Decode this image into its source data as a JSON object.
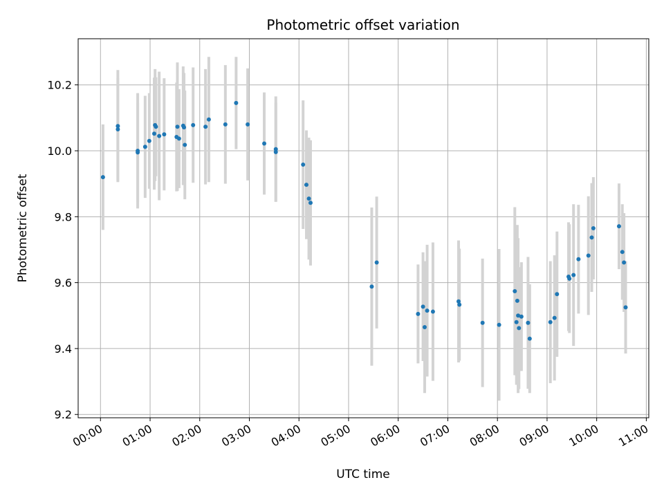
{
  "chart_data": {
    "type": "scatter",
    "title": "Photometric offset variation",
    "xlabel": "UTC time",
    "ylabel": "Photometric offset",
    "x_unit": "UTC time (HH:MM)",
    "xlim": [
      "23:33",
      "11:03"
    ],
    "ylim": [
      9.19,
      10.34
    ],
    "x_ticks": [
      "00:00",
      "01:00",
      "02:00",
      "03:00",
      "04:00",
      "05:00",
      "06:00",
      "07:00",
      "08:00",
      "09:00",
      "10:00",
      "11:00"
    ],
    "y_ticks": [
      9.2,
      9.4,
      9.6,
      9.8,
      10.0,
      10.2
    ],
    "grid": true,
    "colors": {
      "point": "#1f77b4",
      "errorbar": "#d3d3d3",
      "grid": "#b0b0b0"
    },
    "series": [
      {
        "x": [
          "00:03",
          "00:21",
          "00:21",
          "00:45",
          "00:45",
          "00:54",
          "00:59",
          "01:05",
          "01:06",
          "01:07",
          "01:11",
          "01:17",
          "01:32",
          "01:33",
          "01:35",
          "01:40",
          "01:41",
          "01:42",
          "01:52",
          "02:07",
          "02:11",
          "02:31",
          "02:44",
          "02:58",
          "03:18",
          "03:32",
          "03:32",
          "04:05",
          "04:09",
          "04:12",
          "04:14",
          "05:28",
          "05:34",
          "06:24",
          "06:30",
          "06:32",
          "06:35",
          "06:42",
          "07:13",
          "07:14",
          "07:42",
          "08:02",
          "08:21",
          "08:23",
          "08:24",
          "08:25",
          "08:26",
          "08:29",
          "08:37",
          "08:39",
          "09:04",
          "09:09",
          "09:12",
          "09:26",
          "09:27",
          "09:32",
          "09:38",
          "09:50",
          "09:54",
          "09:56",
          "10:27",
          "10:31",
          "10:33",
          "10:35"
        ],
        "y": [
          9.92,
          10.075,
          10.065,
          10.0,
          9.995,
          10.012,
          10.03,
          10.052,
          10.078,
          10.073,
          10.045,
          10.05,
          10.042,
          10.073,
          10.037,
          10.076,
          10.071,
          10.018,
          10.078,
          10.073,
          10.095,
          10.08,
          10.145,
          10.08,
          10.022,
          10.005,
          9.996,
          9.958,
          9.897,
          9.855,
          9.842,
          9.588,
          9.661,
          9.505,
          9.527,
          9.465,
          9.515,
          9.512,
          9.543,
          9.533,
          9.478,
          9.472,
          9.574,
          9.48,
          9.545,
          9.5,
          9.462,
          9.497,
          9.478,
          9.43,
          9.48,
          9.493,
          9.565,
          9.618,
          9.612,
          9.623,
          9.671,
          9.682,
          9.737,
          9.765,
          9.771,
          9.693,
          9.661,
          9.525
        ],
        "err": [
          0.16,
          0.17,
          0.155,
          0.175,
          0.15,
          0.155,
          0.145,
          0.17,
          0.17,
          0.15,
          0.195,
          0.17,
          0.165,
          0.195,
          0.15,
          0.18,
          0.165,
          0.165,
          0.175,
          0.175,
          0.19,
          0.18,
          0.14,
          0.17,
          0.155,
          0.16,
          0.15,
          0.195,
          0.165,
          0.185,
          0.19,
          0.24,
          0.2,
          0.15,
          0.165,
          0.2,
          0.2,
          0.21,
          0.185,
          0.17,
          0.195,
          0.23,
          0.255,
          0.19,
          0.23,
          0.235,
          0.185,
          0.165,
          0.2,
          0.165,
          0.185,
          0.19,
          0.19,
          0.165,
          0.165,
          0.215,
          0.165,
          0.18,
          0.165,
          0.155,
          0.13,
          0.145,
          0.15,
          0.14
        ]
      }
    ]
  }
}
